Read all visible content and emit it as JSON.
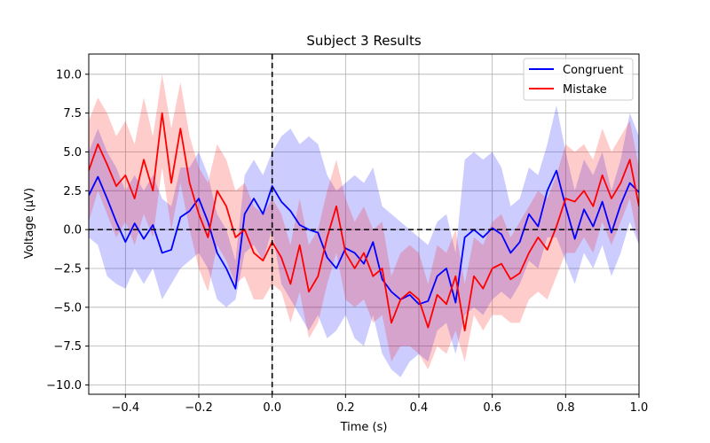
{
  "chart_data": {
    "type": "line",
    "title": "Subject 3 Results",
    "xlabel": "Time (s)",
    "ylabel": "Voltage (μV)",
    "xlim": [
      -0.5,
      1.0
    ],
    "ylim": [
      -10.6,
      11.3
    ],
    "x_ticks": [
      -0.4,
      -0.2,
      0.0,
      0.2,
      0.4,
      0.6,
      0.8,
      1.0
    ],
    "x_tick_labels": [
      "−0.4",
      "−0.2",
      "0.0",
      "0.2",
      "0.4",
      "0.6",
      "0.8",
      "1.0"
    ],
    "y_ticks": [
      -10.0,
      -7.5,
      -5.0,
      -2.5,
      0.0,
      2.5,
      5.0,
      7.5,
      10.0
    ],
    "y_tick_labels": [
      "−10.0",
      "−7.5",
      "−5.0",
      "−2.5",
      "0.0",
      "2.5",
      "5.0",
      "7.5",
      "10.0"
    ],
    "grid": true,
    "legend_position": "top-right",
    "vline_x": 0.0,
    "hline_y": 0.0,
    "x": [
      -0.5,
      -0.475,
      -0.45,
      -0.425,
      -0.4,
      -0.375,
      -0.35,
      -0.325,
      -0.3,
      -0.275,
      -0.25,
      -0.225,
      -0.2,
      -0.175,
      -0.15,
      -0.125,
      -0.1,
      -0.075,
      -0.05,
      -0.025,
      0.0,
      0.025,
      0.05,
      0.075,
      0.1,
      0.125,
      0.15,
      0.175,
      0.2,
      0.225,
      0.25,
      0.275,
      0.3,
      0.325,
      0.35,
      0.375,
      0.4,
      0.425,
      0.45,
      0.475,
      0.5,
      0.525,
      0.55,
      0.575,
      0.6,
      0.625,
      0.65,
      0.675,
      0.7,
      0.725,
      0.75,
      0.775,
      0.8,
      0.825,
      0.85,
      0.875,
      0.9,
      0.925,
      0.95,
      0.975,
      1.0
    ],
    "series": [
      {
        "name": "Congruent",
        "color": "#0000ff",
        "band_color": "#0000ff",
        "values": [
          2.2,
          3.4,
          2.0,
          0.5,
          -0.8,
          0.4,
          -0.6,
          0.3,
          -1.5,
          -1.3,
          0.8,
          1.2,
          2.0,
          0.5,
          -1.5,
          -2.5,
          -3.8,
          1.0,
          2.0,
          1.0,
          2.8,
          1.8,
          1.2,
          0.3,
          0.0,
          -0.2,
          -1.8,
          -2.5,
          -1.2,
          -1.5,
          -2.2,
          -0.8,
          -3.2,
          -4.0,
          -4.5,
          -4.2,
          -4.8,
          -4.6,
          -3.0,
          -2.5,
          -4.7,
          -0.5,
          0.0,
          -0.5,
          0.1,
          -0.3,
          -1.5,
          -0.8,
          1.0,
          0.2,
          2.5,
          3.8,
          1.5,
          -0.6,
          1.3,
          0.2,
          1.8,
          -0.2,
          1.6,
          3.0,
          2.4
        ],
        "lower": [
          -0.5,
          -1.0,
          -3.0,
          -3.5,
          -3.8,
          -2.5,
          -3.5,
          -2.5,
          -4.5,
          -3.5,
          -2.5,
          -2.0,
          -1.5,
          -2.5,
          -4.5,
          -5.0,
          -4.5,
          -1.5,
          -1.0,
          -2.0,
          0.0,
          -3.5,
          -4.5,
          -5.5,
          -6.5,
          -5.5,
          -7.0,
          -6.5,
          -5.5,
          -7.0,
          -7.5,
          -5.5,
          -8.0,
          -9.0,
          -9.5,
          -8.5,
          -8.0,
          -8.5,
          -6.5,
          -6.0,
          -8.0,
          -5.5,
          -5.0,
          -5.5,
          -4.5,
          -4.0,
          -4.5,
          -3.5,
          -2.0,
          -2.5,
          -0.5,
          -0.5,
          -2.0,
          -3.5,
          -1.5,
          -2.5,
          -1.0,
          -3.0,
          -1.5,
          0.5,
          -1.0
        ],
        "upper": [
          5.0,
          6.5,
          5.0,
          4.0,
          2.5,
          3.5,
          2.5,
          3.5,
          2.0,
          1.5,
          4.0,
          4.0,
          5.0,
          3.5,
          1.0,
          0.0,
          -2.0,
          3.5,
          4.5,
          3.5,
          5.0,
          6.0,
          6.5,
          5.5,
          6.0,
          5.5,
          3.5,
          2.5,
          3.0,
          3.5,
          3.0,
          4.0,
          1.5,
          1.0,
          0.5,
          0.0,
          -0.5,
          -1.0,
          0.5,
          1.0,
          -1.5,
          4.5,
          5.0,
          4.5,
          5.0,
          4.0,
          1.5,
          2.0,
          4.0,
          3.5,
          5.5,
          8.0,
          5.0,
          2.5,
          4.5,
          3.5,
          5.0,
          2.5,
          4.5,
          7.5,
          6.0
        ]
      },
      {
        "name": "Mistake",
        "color": "#ff0000",
        "band_color": "#ff0000",
        "values": [
          3.8,
          5.5,
          4.2,
          2.8,
          3.5,
          2.0,
          4.5,
          2.5,
          7.5,
          3.0,
          6.5,
          3.0,
          1.0,
          -0.5,
          2.5,
          1.5,
          -0.5,
          0.0,
          -1.5,
          -2.0,
          -0.8,
          -1.8,
          -3.5,
          -1.0,
          -4.0,
          -3.0,
          -0.5,
          1.5,
          -1.5,
          -2.5,
          -1.5,
          -3.0,
          -2.5,
          -6.0,
          -4.5,
          -4.0,
          -4.5,
          -6.3,
          -4.2,
          -4.8,
          -3.0,
          -6.5,
          -3.0,
          -3.8,
          -2.5,
          -2.2,
          -3.2,
          -2.8,
          -1.5,
          -0.5,
          -1.3,
          0.2,
          2.0,
          1.8,
          2.5,
          1.5,
          3.5,
          2.0,
          3.0,
          4.5,
          1.5
        ],
        "lower": [
          0.5,
          2.5,
          1.0,
          -0.5,
          0.5,
          -1.0,
          1.0,
          -0.5,
          4.0,
          0.0,
          3.0,
          0.0,
          -2.5,
          -4.0,
          -1.0,
          -2.0,
          -3.5,
          -3.0,
          -4.5,
          -4.5,
          -3.5,
          -4.0,
          -6.0,
          -4.0,
          -7.0,
          -6.0,
          -3.5,
          -1.5,
          -4.5,
          -5.0,
          -4.5,
          -6.0,
          -5.5,
          -8.5,
          -7.5,
          -7.5,
          -8.0,
          -9.0,
          -7.5,
          -8.0,
          -6.5,
          -8.5,
          -5.5,
          -6.5,
          -5.5,
          -5.5,
          -6.0,
          -6.0,
          -4.5,
          -4.0,
          -4.5,
          -3.0,
          -1.5,
          -1.5,
          -0.5,
          -1.5,
          0.5,
          -1.0,
          0.5,
          2.0,
          -1.0
        ],
        "upper": [
          7.0,
          8.5,
          7.5,
          6.0,
          7.0,
          5.5,
          8.5,
          6.0,
          10.0,
          6.5,
          9.5,
          6.0,
          4.0,
          3.0,
          5.5,
          4.5,
          2.5,
          3.0,
          1.5,
          1.0,
          2.0,
          1.0,
          -1.0,
          2.0,
          -1.0,
          0.0,
          2.5,
          4.5,
          2.0,
          0.5,
          1.5,
          0.0,
          0.5,
          -3.0,
          -1.5,
          -1.0,
          -1.5,
          -3.5,
          -1.0,
          -1.5,
          0.0,
          -3.5,
          -0.5,
          -1.0,
          0.5,
          1.0,
          -0.5,
          0.5,
          1.5,
          2.5,
          2.0,
          3.5,
          5.5,
          5.0,
          5.5,
          4.5,
          6.5,
          5.0,
          6.0,
          7.0,
          4.0
        ]
      }
    ]
  }
}
